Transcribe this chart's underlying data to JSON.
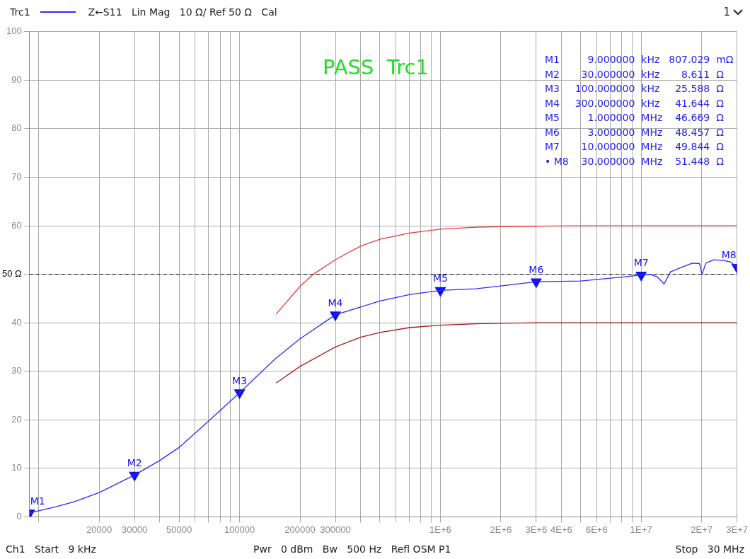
{
  "chart_data": {
    "type": "line",
    "subtitle": "Z←S11   Lin Mag   10 Ω/ Ref 50 Ω   Cal",
    "log": "x",
    "grid": true,
    "legend": "top left",
    "line_style": "solid",
    "xlim": [
      9000,
      30000000
    ],
    "xticks": [
      {
        "value": 10000,
        "label": null
      },
      20000,
      30000,
      {
        "value": 40000,
        "label": null
      },
      50000,
      {
        "value": 60000,
        "label": null
      },
      {
        "value": 70000,
        "label": null
      },
      {
        "value": 80000,
        "label": null
      },
      {
        "value": 90000,
        "label": null
      },
      100000,
      200000,
      300000,
      {
        "value": 400000,
        "label": null
      },
      {
        "value": 500000,
        "label": null
      },
      {
        "value": 600000,
        "label": null
      },
      {
        "value": 700000,
        "label": null
      },
      {
        "value": 800000,
        "label": null
      },
      {
        "value": 900000,
        "label": null
      },
      {
        "value": 1000000,
        "label": "1E+6"
      },
      {
        "value": 2000000,
        "label": "2E+6"
      },
      {
        "value": 3000000,
        "label": "3E+6"
      },
      {
        "value": 4000000,
        "label": "4E+6"
      },
      {
        "value": 5000000,
        "label": null
      },
      {
        "value": 6000000,
        "label": "6E+6"
      },
      {
        "value": 7000000,
        "label": null
      },
      {
        "value": 8000000,
        "label": null
      },
      {
        "value": 9000000,
        "label": null
      },
      {
        "value": 10000000,
        "label": "1E+7"
      },
      {
        "value": 20000000,
        "label": "2E+7"
      },
      {
        "value": 30000000,
        "label": "3E+7"
      }
    ],
    "ylim": [
      0,
      100
    ],
    "yticks": [
      0,
      10,
      20,
      30,
      40,
      {
        "value": 50,
        "label": "50 Ω"
      },
      60,
      70,
      80,
      90,
      100
    ],
    "ref_lines": [
      {
        "axis": "y",
        "value": 50,
        "color": "#000000",
        "line_style": "dashed"
      }
    ],
    "series": [
      {
        "name": "Trc1",
        "color": "#2a2aff",
        "x": [
          9000,
          12000,
          15000,
          20000,
          30000,
          40000,
          50000,
          70000,
          100000,
          150000,
          200000,
          300000,
          500000,
          700000,
          1000000,
          1500000,
          2000000,
          3000000,
          5000000,
          8000000,
          10000000,
          11000000,
          12000000,
          13000000,
          14000000,
          16000000,
          18000000,
          19500000,
          20100000,
          21000000,
          23000000,
          26000000,
          28000000,
          30000000
        ],
        "values": [
          0.807,
          2.0,
          3.1,
          5.0,
          8.611,
          11.6,
          14.3,
          19.7,
          25.588,
          32.5,
          36.7,
          41.644,
          44.5,
          45.8,
          46.669,
          47.0,
          47.6,
          48.457,
          48.6,
          49.4,
          49.844,
          50.0,
          49.5,
          48.0,
          50.5,
          51.5,
          52.3,
          52.2,
          50.0,
          52.3,
          53.0,
          52.8,
          52.5,
          51.448
        ]
      },
      {
        "color": "#e83a3a",
        "x": [
          152000,
          200000,
          233000,
          300000,
          400000,
          500000,
          700000,
          1000000,
          1500000,
          2000000,
          3000000,
          5000000,
          10000000,
          30000000
        ],
        "values": [
          41.8,
          47.5,
          50.0,
          53.0,
          55.8,
          57.2,
          58.5,
          59.3,
          59.7,
          59.8,
          59.9,
          60,
          60,
          60
        ]
      },
      {
        "type": "scatter",
        "color": "#1010ee",
        "x": [
          9000,
          30000,
          100000,
          300000,
          1000000,
          3000000,
          10000000,
          30000000
        ],
        "values": [
          0.807,
          8.611,
          25.588,
          41.644,
          46.669,
          48.457,
          49.844,
          51.448
        ]
      },
      {
        "color": "#a31c1c",
        "x": [
          152000,
          200000,
          300000,
          400000,
          500000,
          700000,
          1000000,
          1500000,
          2000000,
          3000000,
          5000000,
          10000000,
          30000000
        ],
        "values": [
          27.6,
          31.0,
          35.0,
          37.0,
          38.0,
          39.0,
          39.5,
          39.8,
          39.9,
          40,
          40,
          40,
          40
        ]
      }
    ],
    "annotations": [
      "1",
      "PASS  Trc1",
      "M1  9.000000  kHz  807.029  mΩ",
      "M2  30.000000  kHz  8.611  Ω",
      "M3  100.000000  kHz  25.588  Ω",
      "M4  300.000000  kHz  41.644  Ω",
      "M5  1.000000  MHz  46.669  Ω",
      "M6  3.000000  MHz  48.457  Ω",
      "M7  10.000000  MHz  49.844  Ω",
      "• M8  30.000000  MHz  51.448  Ω",
      "Ch1   Start   9 kHz",
      "Pwr   0 dBm   Bw   500 Hz   Refl OSM P1",
      "Stop   30 MHz",
      {
        "text": "M1",
        "x": 9000,
        "y": 0.807
      },
      {
        "text": "M2",
        "x": 30000,
        "y": 8.611
      },
      {
        "text": "M3",
        "x": 100000,
        "y": 25.588
      },
      {
        "text": "M4",
        "x": 300000,
        "y": 41.644
      },
      {
        "text": "M5",
        "x": 1000000,
        "y": 46.669
      },
      {
        "text": "M6",
        "x": 3000000,
        "y": 48.457
      },
      {
        "text": "M7",
        "x": 10000000,
        "y": 49.844
      },
      {
        "text": "M8",
        "x": 30000000,
        "y": 51.448
      }
    ]
  }
}
